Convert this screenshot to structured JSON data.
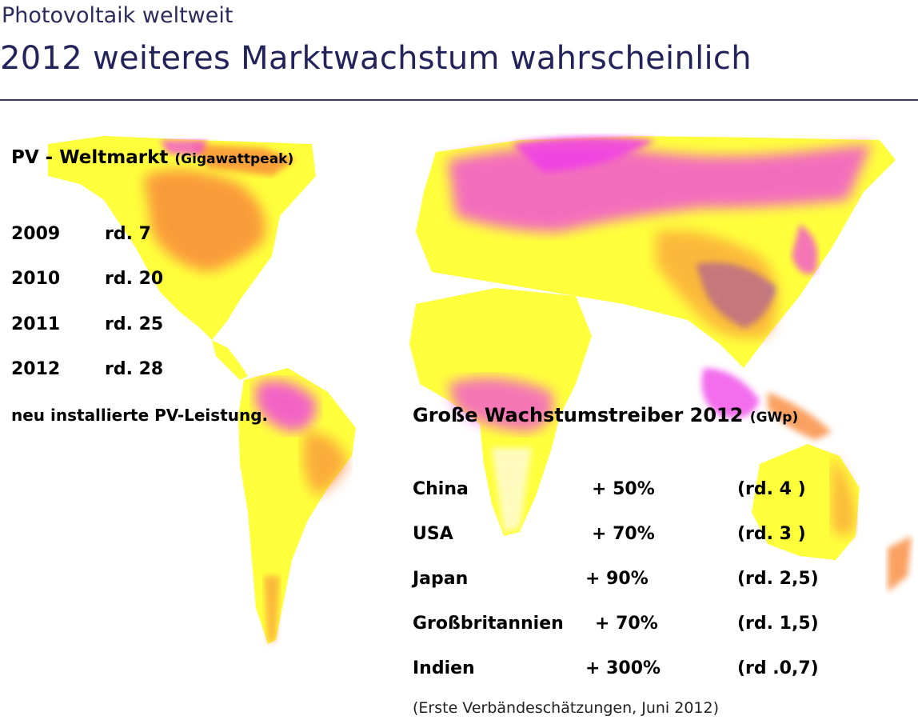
{
  "header": {
    "subtitle": "Photovoltaik weltweit",
    "title": "2012 weiteres Marktwachstum wahrscheinlich"
  },
  "left_panel": {
    "heading": "PV - Weltmarkt",
    "heading_unit": "(Gigawattpeak)",
    "rows": [
      {
        "year": "2009",
        "value": "rd.   7"
      },
      {
        "year": "2010",
        "value": "rd. 20"
      },
      {
        "year": "2011",
        "value": "rd. 25"
      },
      {
        "year": "2012",
        "value": "rd. 28"
      }
    ],
    "note": "neu installierte PV-Leistung."
  },
  "right_panel": {
    "heading": "Große Wachstumstreiber 2012",
    "heading_unit": "(GWp)",
    "rows": [
      {
        "country": "China",
        "growth": "+ 50%",
        "amount": "(rd.  4 )"
      },
      {
        "country": "USA",
        "growth": "+ 70%",
        "amount": "(rd.  3 )"
      },
      {
        "country": "Japan",
        "growth": "+ 90%",
        "amount": "(rd. 2,5)"
      },
      {
        "country": "Großbritannien",
        "growth": "+ 70%",
        "amount": "(rd. 1,5)"
      },
      {
        "country": "Indien",
        "growth": "+ 300%",
        "amount": "(rd .0,7)"
      }
    ],
    "source": "(Erste Verbändeschätzungen, Juni 2012)"
  },
  "colors": {
    "title": "#23235b",
    "map_yellow": "#ffff3c",
    "map_orange": "#f98a3a",
    "map_magenta": "#f03ce8",
    "map_blue": "#6a4cf0"
  }
}
